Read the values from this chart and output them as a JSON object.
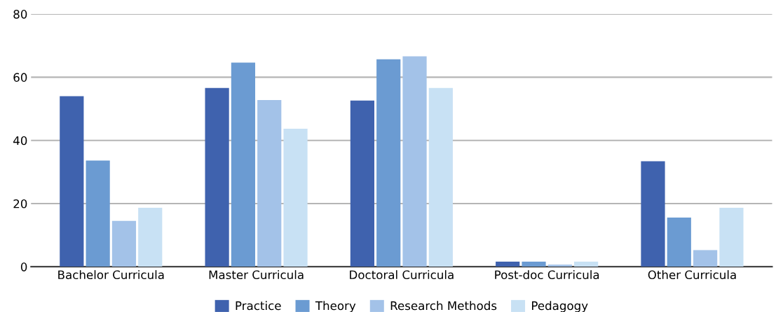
{
  "chart_data": {
    "type": "bar",
    "categories": [
      "Bachelor Curricula",
      "Master Curricula",
      "Doctoral Curricula",
      "Post-doc Curricula",
      "Other Curricula"
    ],
    "series": [
      {
        "name": "Practice",
        "color": "#3f62ae",
        "values": [
          54,
          56.6,
          52.6,
          1.6,
          33.4
        ]
      },
      {
        "name": "Theory",
        "color": "#6b9bd2",
        "values": [
          33.6,
          64.6,
          65.7,
          1.6,
          15.6
        ]
      },
      {
        "name": "Research Methods",
        "color": "#a3c2e8",
        "values": [
          14.5,
          52.8,
          66.6,
          0.7,
          5.3
        ]
      },
      {
        "name": "Pedagogy",
        "color": "#c8e1f4",
        "values": [
          18.7,
          43.7,
          56.6,
          1.6,
          18.7
        ]
      }
    ],
    "ylim": [
      0,
      80
    ],
    "yticks": [
      0,
      20,
      40,
      60,
      80
    ],
    "grid": "y",
    "legend": "bottom"
  }
}
